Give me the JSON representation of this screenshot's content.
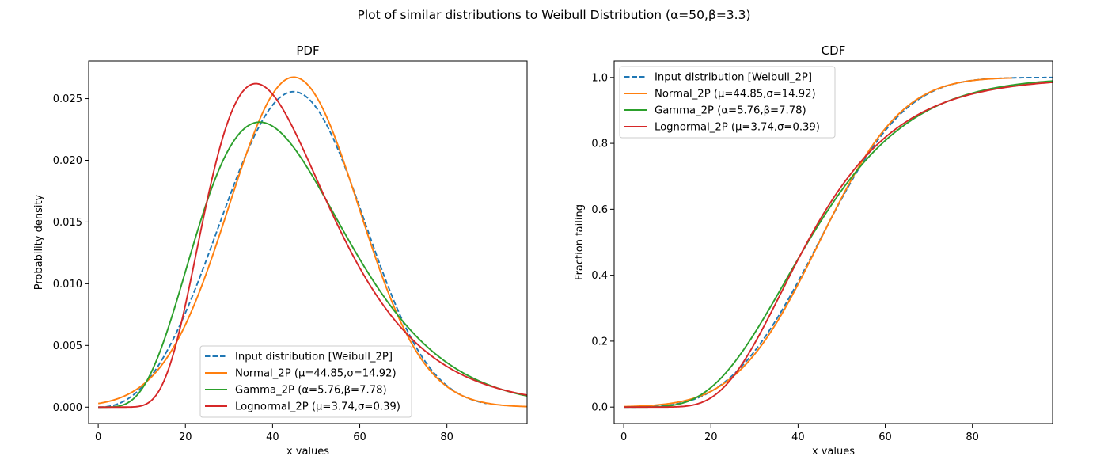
{
  "figure": {
    "suptitle": "Plot of similar distributions to Weibull Distribution (α=50,β=3.3)"
  },
  "chart_data": [
    {
      "type": "line",
      "title": "PDF",
      "xlabel": "x values",
      "ylabel": "Probability density",
      "xlim": [
        -2.2,
        98.4
      ],
      "ylim": [
        -0.00133,
        0.02805
      ],
      "x_ticks": [
        0,
        20,
        40,
        60,
        80
      ],
      "x_tick_labels": [
        "0",
        "20",
        "40",
        "60",
        "80"
      ],
      "y_ticks": [
        0.0,
        0.005,
        0.01,
        0.015,
        0.02,
        0.025
      ],
      "y_tick_labels": [
        "0.000",
        "0.005",
        "0.010",
        "0.015",
        "0.020",
        "0.025"
      ],
      "grid": false,
      "legend_position": "lower center",
      "series": [
        {
          "name": "Input distribution [Weibull_2P]",
          "distribution": "weibull",
          "alpha": 50,
          "beta": 3.3,
          "color": "#1f77b4",
          "style": "dashed"
        },
        {
          "name": "Normal_2P (μ=44.85,σ=14.92)",
          "distribution": "normal",
          "mu": 44.85,
          "sigma": 14.92,
          "color": "#ff7f0e",
          "style": "solid"
        },
        {
          "name": "Gamma_2P (α=5.76,β=7.78)",
          "distribution": "gamma",
          "alpha": 7.78,
          "beta": 5.76,
          "color": "#2ca02c",
          "style": "solid"
        },
        {
          "name": "Lognormal_2P (μ=3.74,σ=0.39)",
          "distribution": "lognormal",
          "mu": 3.74,
          "sigma": 0.39,
          "color": "#d62728",
          "style": "solid"
        }
      ]
    },
    {
      "type": "line",
      "title": "CDF",
      "xlabel": "x values",
      "ylabel": "Fraction failing",
      "xlim": [
        -2.2,
        98.4
      ],
      "ylim": [
        -0.05,
        1.05
      ],
      "x_ticks": [
        0,
        20,
        40,
        60,
        80
      ],
      "x_tick_labels": [
        "0",
        "20",
        "40",
        "60",
        "80"
      ],
      "y_ticks": [
        0.0,
        0.2,
        0.4,
        0.6,
        0.8,
        1.0
      ],
      "y_tick_labels": [
        "0.0",
        "0.2",
        "0.4",
        "0.6",
        "0.8",
        "1.0"
      ],
      "grid": false,
      "legend_position": "upper left",
      "series": [
        {
          "name": "Input distribution [Weibull_2P]",
          "distribution": "weibull",
          "alpha": 50,
          "beta": 3.3,
          "color": "#1f77b4",
          "style": "dashed"
        },
        {
          "name": "Normal_2P (μ=44.85,σ=14.92)",
          "distribution": "normal",
          "mu": 44.85,
          "sigma": 14.92,
          "color": "#ff7f0e",
          "style": "solid"
        },
        {
          "name": "Gamma_2P (α=5.76,β=7.78)",
          "distribution": "gamma",
          "alpha": 7.78,
          "beta": 5.76,
          "color": "#2ca02c",
          "style": "solid"
        },
        {
          "name": "Lognormal_2P (μ=3.74,σ=0.39)",
          "distribution": "lognormal",
          "mu": 3.74,
          "sigma": 0.39,
          "color": "#d62728",
          "style": "solid"
        }
      ]
    }
  ]
}
